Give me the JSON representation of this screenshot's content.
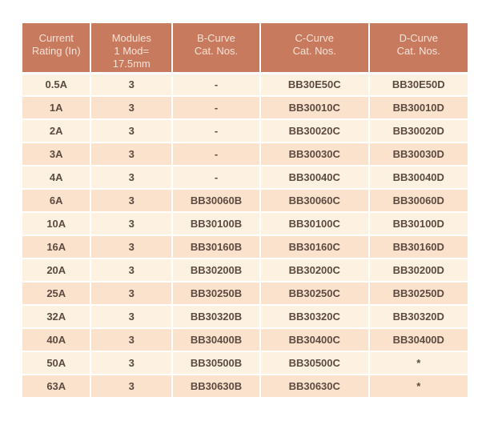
{
  "colors": {
    "header_bg": "#c87a5e",
    "header_text": "#f6e2d7",
    "row_light": "#fdf1e2",
    "row_dark": "#fae2cd",
    "body_text": "#5d4a40",
    "page_bg": "#ffffff",
    "grid_line": "#ffffff"
  },
  "table": {
    "columns": [
      {
        "id": "current-rating",
        "header_lines": [
          "Current",
          "Rating (In)"
        ]
      },
      {
        "id": "modules",
        "header_lines": [
          "Modules",
          "1 Mod=",
          "17.5mm"
        ]
      },
      {
        "id": "b-curve",
        "header_lines": [
          "B-Curve",
          "Cat. Nos."
        ]
      },
      {
        "id": "c-curve",
        "header_lines": [
          "C-Curve",
          "Cat. Nos."
        ]
      },
      {
        "id": "d-curve",
        "header_lines": [
          "D-Curve",
          "Cat. Nos."
        ]
      }
    ],
    "rows": [
      [
        "0.5A",
        "3",
        "-",
        "BB30E50C",
        "BB30E50D"
      ],
      [
        "1A",
        "3",
        "-",
        "BB30010C",
        "BB30010D"
      ],
      [
        "2A",
        "3",
        "-",
        "BB30020C",
        "BB30020D"
      ],
      [
        "3A",
        "3",
        "-",
        "BB30030C",
        "BB30030D"
      ],
      [
        "4A",
        "3",
        "-",
        "BB30040C",
        "BB30040D"
      ],
      [
        "6A",
        "3",
        "BB30060B",
        "BB30060C",
        "BB30060D"
      ],
      [
        "10A",
        "3",
        "BB30100B",
        "BB30100C",
        "BB30100D"
      ],
      [
        "16A",
        "3",
        "BB30160B",
        "BB30160C",
        "BB30160D"
      ],
      [
        "20A",
        "3",
        "BB30200B",
        "BB30200C",
        "BB30200D"
      ],
      [
        "25A",
        "3",
        "BB30250B",
        "BB30250C",
        "BB30250D"
      ],
      [
        "32A",
        "3",
        "BB30320B",
        "BB30320C",
        "BB30320D"
      ],
      [
        "40A",
        "3",
        "BB30400B",
        "BB30400C",
        "BB30400D"
      ],
      [
        "50A",
        "3",
        "BB30500B",
        "BB30500C",
        "*"
      ],
      [
        "63A",
        "3",
        "BB30630B",
        "BB30630C",
        "*"
      ]
    ]
  }
}
